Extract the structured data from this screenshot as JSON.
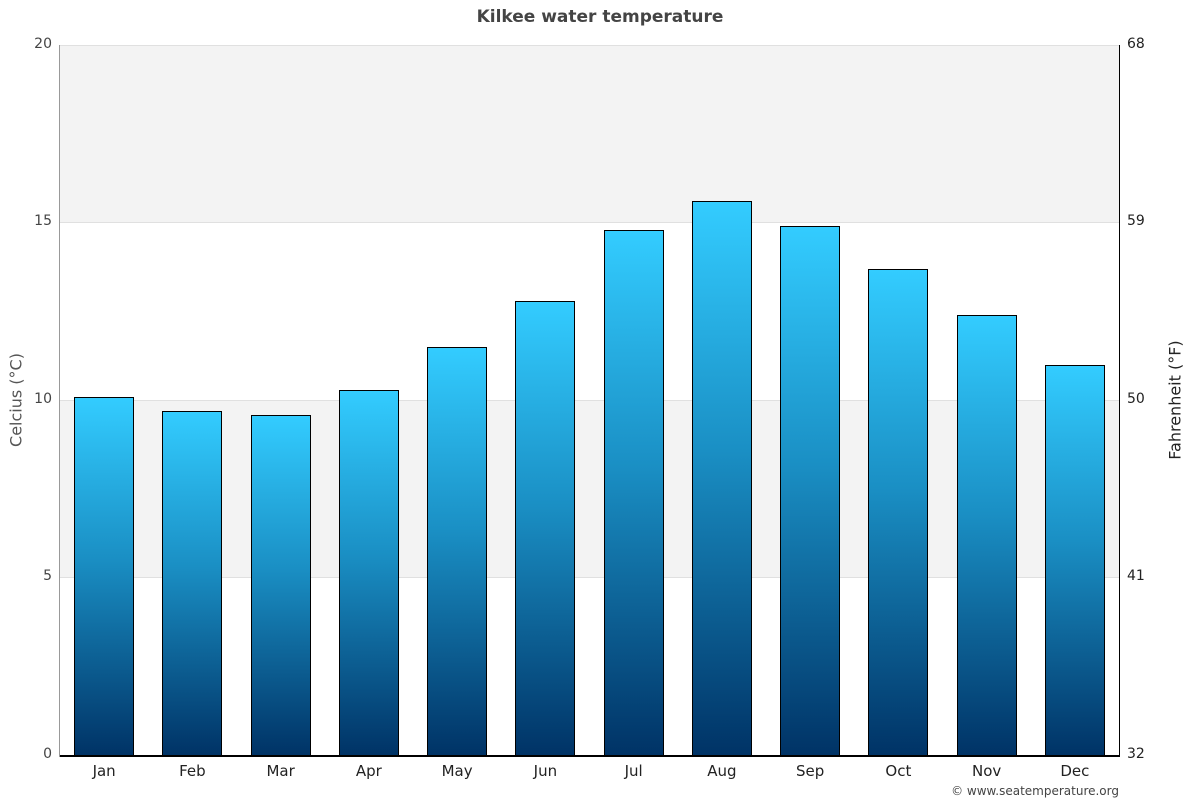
{
  "title": "Kilkee water temperature",
  "credit": "© www.seatemperature.org",
  "axes": {
    "left_label": "Celcius (°C)",
    "right_label": "Fahrenheit (°F)",
    "left_ticks": [
      "0",
      "5",
      "10",
      "15",
      "20"
    ],
    "right_ticks": [
      "32",
      "41",
      "50",
      "59",
      "68"
    ]
  },
  "colors": {
    "bar_top": "#33ccff",
    "bar_bottom": "#003366",
    "band": "#f3f3f3"
  },
  "chart_data": {
    "type": "bar",
    "title": "Kilkee water temperature",
    "xlabel": "",
    "ylabel": "Celcius (°C)",
    "ylabel_right": "Fahrenheit (°F)",
    "categories": [
      "Jan",
      "Feb",
      "Mar",
      "Apr",
      "May",
      "Jun",
      "Jul",
      "Aug",
      "Sep",
      "Oct",
      "Nov",
      "Dec"
    ],
    "values": [
      10.1,
      9.7,
      9.6,
      10.3,
      11.5,
      12.8,
      14.8,
      15.6,
      14.9,
      13.7,
      12.4,
      11.0
    ],
    "ylim": [
      0,
      20
    ],
    "ylim_right": [
      32,
      68
    ],
    "yticks": [
      0,
      5,
      10,
      15,
      20
    ],
    "yticks_right": [
      32,
      41,
      50,
      59,
      68
    ],
    "grid": true,
    "legend": null
  }
}
